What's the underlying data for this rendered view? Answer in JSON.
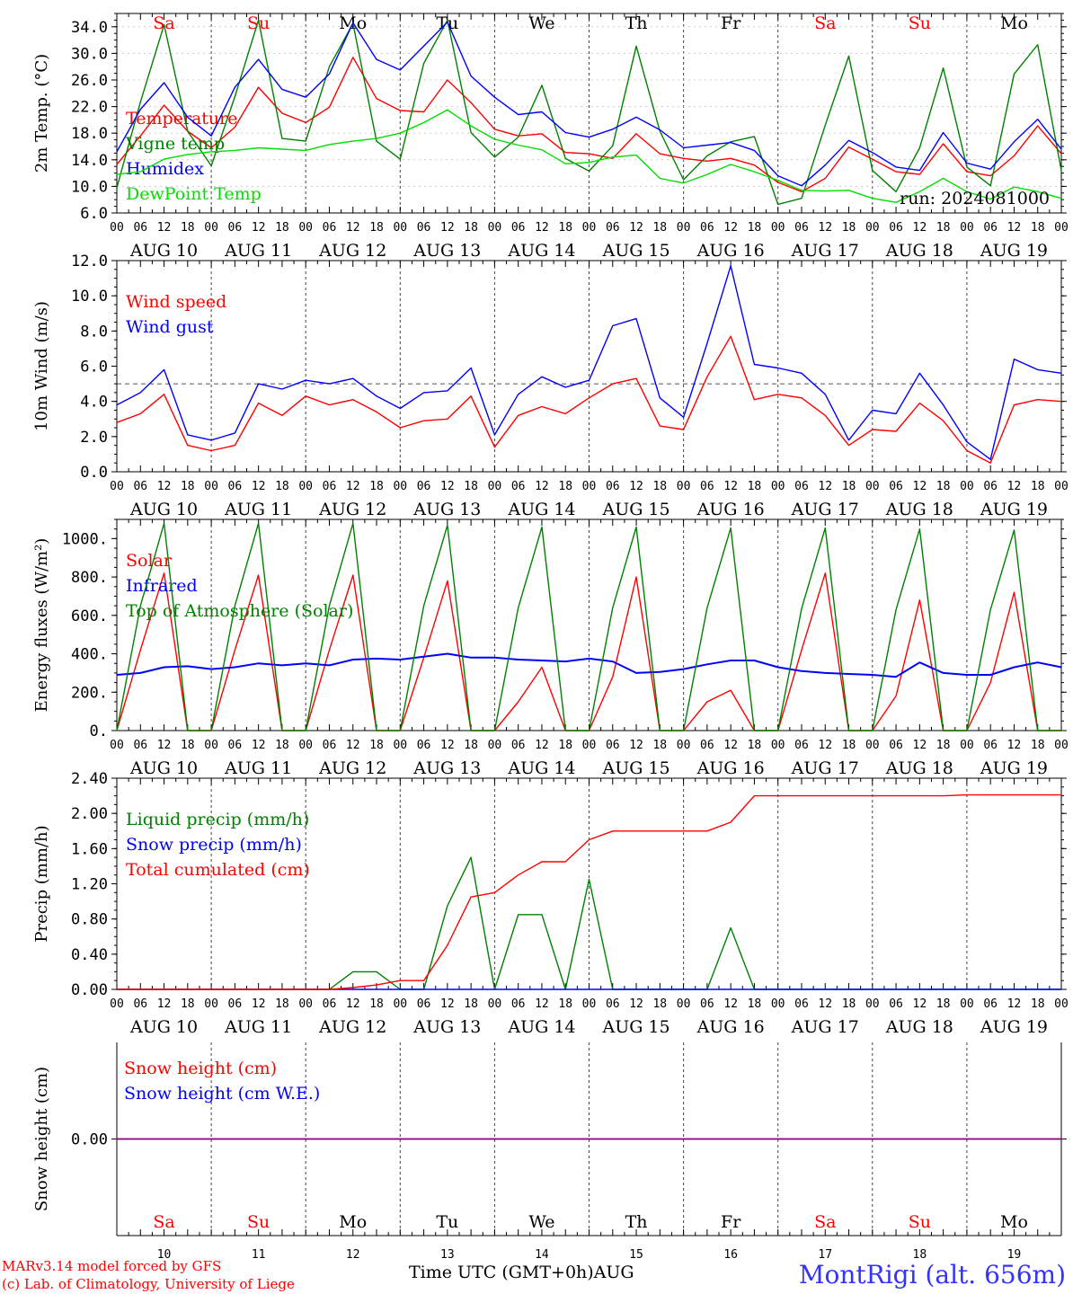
{
  "colors": {
    "red": "#ff0000",
    "green": "#008000",
    "blue": "#0000ff",
    "lightgreen": "#00dd00",
    "purple": "#800080",
    "weekend": "#ff0000",
    "weekday": "#000000"
  },
  "days": [
    {
      "abbr": "Sa",
      "date": "AUG 10",
      "num": "10",
      "weekend": true
    },
    {
      "abbr": "Su",
      "date": "AUG 11",
      "num": "11",
      "weekend": true
    },
    {
      "abbr": "Mo",
      "date": "AUG 12",
      "num": "12",
      "weekend": false
    },
    {
      "abbr": "Tu",
      "date": "AUG 13",
      "num": "13",
      "weekend": false
    },
    {
      "abbr": "We",
      "date": "AUG 14",
      "num": "14",
      "weekend": false
    },
    {
      "abbr": "Th",
      "date": "AUG 15",
      "num": "15",
      "weekend": false
    },
    {
      "abbr": "Fr",
      "date": "AUG 16",
      "num": "16",
      "weekend": false
    },
    {
      "abbr": "Sa",
      "date": "AUG 17",
      "num": "17",
      "weekend": true
    },
    {
      "abbr": "Su",
      "date": "AUG 18",
      "num": "18",
      "weekend": true
    },
    {
      "abbr": "Mo",
      "date": "AUG 19",
      "num": "19",
      "weekend": false
    }
  ],
  "hour_labels": [
    "00",
    "06",
    "12",
    "18"
  ],
  "final_hour_label": "00",
  "x_axis_title": "Time UTC (GMT+0h)",
  "x_axis_month": "AUG",
  "footer": {
    "model": "MARv3.14 model forced by GFS",
    "credit": "(c) Lab. of Climatology, University of Liege",
    "station": "MontRigi (alt. 656m)"
  },
  "chart_data": [
    {
      "type": "line",
      "ylabel": "2m Temp. (°C)",
      "ylim": [
        6,
        36
      ],
      "yticks": [
        6,
        10,
        14,
        18,
        22,
        26,
        30,
        34
      ],
      "ytick_labels": [
        "6.0",
        "10.0",
        "14.0",
        "18.0",
        "22.0",
        "26.0",
        "30.0",
        "34.0"
      ],
      "grid": true,
      "legend_position": "top-left",
      "annotation": "run: 2024081000",
      "x_hours": [
        0,
        6,
        12,
        18,
        24,
        30,
        36,
        42,
        48,
        54,
        60,
        66,
        72,
        78,
        84,
        90,
        96,
        102,
        108,
        114,
        120,
        126,
        132,
        138,
        144,
        150,
        156,
        162,
        168,
        174,
        180,
        186,
        192,
        198,
        204,
        210,
        216,
        222,
        228,
        234,
        240
      ],
      "series": [
        {
          "name": "Temperature",
          "color": "red",
          "values": [
            13.3,
            17.6,
            22.2,
            18.3,
            15.8,
            18.9,
            24.9,
            21.0,
            19.6,
            21.9,
            29.4,
            23.2,
            21.4,
            21.2,
            26.0,
            22.6,
            18.6,
            17.6,
            17.9,
            15.1,
            14.9,
            14.2,
            17.9,
            14.9,
            14.2,
            13.8,
            14.2,
            13.2,
            10.6,
            9.2,
            11.2,
            15.9,
            14.1,
            12.2,
            11.8,
            16.4,
            12.2,
            11.6,
            14.6,
            19.1,
            14.9
          ]
        },
        {
          "name": "Vigne temp",
          "color": "green",
          "values": [
            9.8,
            22.7,
            34.3,
            18.3,
            13.1,
            23.5,
            35.0,
            17.2,
            16.8,
            28.0,
            34.5,
            16.8,
            14.1,
            28.5,
            35.0,
            18.1,
            14.4,
            17.4,
            25.2,
            14.2,
            12.3,
            16.1,
            31.1,
            18.3,
            11.0,
            14.6,
            16.7,
            17.5,
            7.3,
            8.2,
            19.2,
            29.6,
            12.4,
            9.2,
            15.8,
            27.8,
            12.9,
            10.1,
            26.9,
            31.3,
            12.4
          ]
        },
        {
          "name": "Humidex",
          "color": "blue",
          "values": [
            15.2,
            21.6,
            25.6,
            20.4,
            17.6,
            24.9,
            29.1,
            24.6,
            23.4,
            26.9,
            34.6,
            29.1,
            27.5,
            31.1,
            34.7,
            26.6,
            23.4,
            20.8,
            21.2,
            18.1,
            17.4,
            18.6,
            20.4,
            18.5,
            15.8,
            16.2,
            16.6,
            15.4,
            11.6,
            10.1,
            13.2,
            16.9,
            15.1,
            12.9,
            12.4,
            18.1,
            13.5,
            12.6,
            16.7,
            20.1,
            15.6
          ]
        },
        {
          "name": "DewPoint Temp",
          "color": "lightgreen",
          "values": [
            11.8,
            12.2,
            14.1,
            14.8,
            15.2,
            15.4,
            15.8,
            15.6,
            15.4,
            16.3,
            16.8,
            17.2,
            18.0,
            19.6,
            21.5,
            19.1,
            17.1,
            16.2,
            15.5,
            13.4,
            13.6,
            14.4,
            14.7,
            11.2,
            10.5,
            11.8,
            13.3,
            12.2,
            10.9,
            9.4,
            9.3,
            9.4,
            8.2,
            7.6,
            9.2,
            11.2,
            9.2,
            8.1,
            9.9,
            9.2,
            8.2
          ]
        }
      ]
    },
    {
      "type": "line",
      "ylabel": "10m Wind (m/s)",
      "ylim": [
        0,
        12
      ],
      "yticks": [
        0,
        2,
        4,
        6,
        8,
        10,
        12
      ],
      "ytick_labels": [
        "0.0",
        "2.0",
        "4.0",
        "6.0",
        "8.0",
        "10.0",
        "12.0"
      ],
      "reference_line": 5.0,
      "legend_position": "top-left",
      "x_hours": [
        0,
        6,
        12,
        18,
        24,
        30,
        36,
        42,
        48,
        54,
        60,
        66,
        72,
        78,
        84,
        90,
        96,
        102,
        108,
        114,
        120,
        126,
        132,
        138,
        144,
        150,
        156,
        162,
        168,
        174,
        180,
        186,
        192,
        198,
        204,
        210,
        216,
        222,
        228,
        234,
        240
      ],
      "series": [
        {
          "name": "Wind speed",
          "color": "red",
          "values": [
            2.8,
            3.3,
            4.4,
            1.5,
            1.2,
            1.5,
            3.9,
            3.2,
            4.3,
            3.8,
            4.1,
            3.4,
            2.5,
            2.9,
            3.0,
            4.3,
            1.4,
            3.2,
            3.7,
            3.3,
            4.2,
            5.0,
            5.3,
            2.6,
            2.4,
            5.4,
            7.7,
            4.1,
            4.4,
            4.2,
            3.2,
            1.5,
            2.4,
            2.3,
            3.9,
            2.9,
            1.2,
            0.5,
            3.8,
            4.1,
            4.0
          ]
        },
        {
          "name": "Wind gust",
          "color": "blue",
          "values": [
            3.8,
            4.5,
            5.8,
            2.1,
            1.8,
            2.2,
            5.0,
            4.7,
            5.2,
            5.0,
            5.3,
            4.3,
            3.6,
            4.5,
            4.6,
            5.9,
            2.1,
            4.4,
            5.4,
            4.8,
            5.2,
            8.3,
            8.7,
            4.2,
            3.1,
            7.3,
            11.7,
            6.1,
            5.9,
            5.6,
            4.4,
            1.8,
            3.5,
            3.3,
            5.6,
            3.8,
            1.7,
            0.7,
            6.4,
            5.8,
            5.6
          ]
        }
      ]
    },
    {
      "type": "line",
      "ylabel": "Energy fluxes (W/m²)",
      "ylim": [
        0,
        1100
      ],
      "yticks": [
        0,
        200,
        400,
        600,
        800,
        1000
      ],
      "ytick_labels": [
        "0.",
        "200.",
        "400.",
        "600.",
        "800.",
        "1000."
      ],
      "legend_position": "top-left",
      "x_hours": [
        0,
        6,
        12,
        18,
        24,
        30,
        36,
        42,
        48,
        54,
        60,
        66,
        72,
        78,
        84,
        90,
        96,
        102,
        108,
        114,
        120,
        126,
        132,
        138,
        144,
        150,
        156,
        162,
        168,
        174,
        180,
        186,
        192,
        198,
        204,
        210,
        216,
        222,
        228,
        234,
        240
      ],
      "series": [
        {
          "name": "Solar",
          "color": "red",
          "values": [
            0,
            420,
            820,
            0,
            0,
            420,
            810,
            0,
            0,
            420,
            810,
            0,
            0,
            380,
            780,
            0,
            0,
            150,
            330,
            0,
            0,
            280,
            800,
            0,
            0,
            150,
            210,
            0,
            0,
            420,
            820,
            0,
            0,
            180,
            680,
            0,
            0,
            250,
            720,
            0,
            0
          ]
        },
        {
          "name": "Infrared",
          "color": "blue",
          "values": [
            290,
            300,
            330,
            335,
            320,
            330,
            350,
            340,
            350,
            340,
            370,
            375,
            370,
            385,
            400,
            380,
            380,
            370,
            365,
            360,
            375,
            360,
            300,
            305,
            320,
            345,
            365,
            365,
            330,
            310,
            300,
            295,
            290,
            280,
            355,
            300,
            290,
            290,
            330,
            355,
            330
          ]
        },
        {
          "name": "Top of Atmosphere (Solar)",
          "color": "green",
          "values": [
            0,
            650,
            1080,
            0,
            0,
            650,
            1080,
            0,
            0,
            650,
            1080,
            0,
            0,
            650,
            1070,
            0,
            0,
            640,
            1060,
            0,
            0,
            640,
            1060,
            0,
            0,
            640,
            1055,
            0,
            0,
            635,
            1055,
            0,
            0,
            630,
            1050,
            0,
            0,
            630,
            1045,
            0,
            0
          ]
        }
      ]
    },
    {
      "type": "line",
      "ylabel": "Precip (mm/h)",
      "ylim": [
        0,
        2.4
      ],
      "yticks": [
        0,
        0.4,
        0.8,
        1.2,
        1.6,
        2.0,
        2.4
      ],
      "ytick_labels": [
        "0.00",
        "0.40",
        "0.80",
        "1.20",
        "1.60",
        "2.00",
        "2.40"
      ],
      "legend_position": "top-left",
      "x_hours": [
        0,
        6,
        12,
        18,
        24,
        30,
        36,
        42,
        48,
        54,
        60,
        66,
        72,
        78,
        84,
        90,
        96,
        102,
        108,
        114,
        120,
        126,
        132,
        138,
        144,
        150,
        156,
        162,
        168,
        174,
        180,
        186,
        192,
        198,
        204,
        210,
        216,
        222,
        228,
        234,
        240
      ],
      "series": [
        {
          "name": "Liquid precip (mm/h)",
          "color": "green",
          "values": [
            0,
            0,
            0,
            0,
            0,
            0,
            0,
            0,
            0,
            0,
            0.2,
            0.2,
            0,
            0,
            0.95,
            1.5,
            0,
            0.85,
            0.85,
            0,
            1.25,
            0,
            0,
            0,
            0,
            0,
            0.7,
            0,
            0,
            0,
            0,
            0,
            0,
            0,
            0,
            0,
            0,
            0,
            0,
            0,
            0
          ]
        },
        {
          "name": "Snow precip (mm/h)",
          "color": "blue",
          "values": [
            0,
            0,
            0,
            0,
            0,
            0,
            0,
            0,
            0,
            0,
            0,
            0,
            0,
            0,
            0,
            0,
            0,
            0,
            0,
            0,
            0,
            0,
            0,
            0,
            0,
            0,
            0,
            0,
            0,
            0,
            0,
            0,
            0,
            0,
            0,
            0,
            0,
            0,
            0,
            0,
            0
          ]
        },
        {
          "name": "Total cumulated (cm)",
          "color": "red",
          "values": [
            0,
            0,
            0,
            0,
            0,
            0,
            0,
            0,
            0,
            0,
            0.02,
            0.05,
            0.1,
            0.1,
            0.5,
            1.05,
            1.1,
            1.3,
            1.45,
            1.45,
            1.7,
            1.8,
            1.8,
            1.8,
            1.8,
            1.8,
            1.9,
            2.2,
            2.2,
            2.2,
            2.2,
            2.2,
            2.2,
            2.2,
            2.2,
            2.2,
            2.21,
            2.21,
            2.21,
            2.21,
            2.21
          ]
        }
      ]
    },
    {
      "type": "line",
      "ylabel": "Snow height (cm)",
      "ylim": [
        -1,
        1
      ],
      "yticks": [
        0
      ],
      "ytick_labels": [
        "0.00"
      ],
      "legend_position": "top-left",
      "x_hours": [
        0,
        240
      ],
      "series": [
        {
          "name": "Snow height (cm)",
          "color": "red",
          "values": [
            0,
            0
          ]
        },
        {
          "name": "Snow height (cm W.E.)",
          "color": "blue",
          "values": [
            0,
            0
          ]
        }
      ]
    }
  ]
}
